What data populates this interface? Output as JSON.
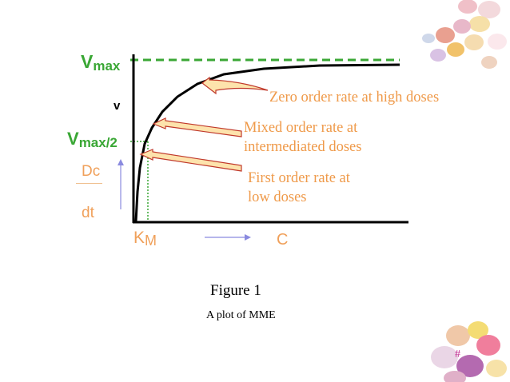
{
  "labels": {
    "vmax_base": "V",
    "vmax_sub": "max",
    "vmax2_base": "V",
    "vmax2_sub": "max/2",
    "v_axis": "v",
    "dc": "Dc",
    "dt": "dt",
    "km_base": "K",
    "km_sub": "M",
    "c_axis": "C"
  },
  "annotations": {
    "zero_order": "Zero order rate at high doses",
    "mixed_order": [
      "Mixed order rate at",
      "intermediated doses"
    ],
    "first_order": [
      "First order rate at",
      "low doses"
    ]
  },
  "figure": {
    "title": "Figure 1",
    "caption": "A plot of MME"
  },
  "slide_number": "#",
  "colors": {
    "green": "#3aa735",
    "orange": "#f0a05a",
    "arrow_fill": "#fde3ac",
    "arrow_stroke": "#c0392b",
    "small_arrow": "#8a8adf",
    "magenta": "#c0268e"
  },
  "icons": {
    "top_right": "candy-eggs-decoration",
    "bottom_right": "candy-eggs-decoration"
  }
}
